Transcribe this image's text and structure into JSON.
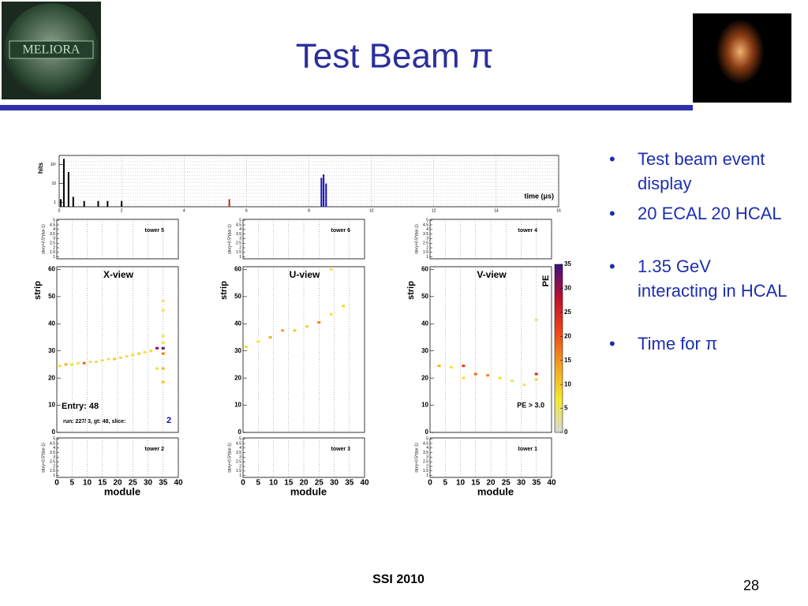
{
  "header": {
    "title": "Test Beam π",
    "logo_text": "MELIORA"
  },
  "bullets": [
    "Test beam event display",
    "20 ECAL 20 HCAL",
    "1.35 GeV interacting in HCAL",
    "Time for π"
  ],
  "footer": {
    "event": "SSI 2010",
    "page": "28"
  },
  "timing": {
    "ylabel": "hits",
    "xlabel": "time (μs)",
    "log": true,
    "xlim": [
      0,
      16
    ],
    "xticks": [
      0,
      2,
      4,
      6,
      8,
      10,
      12,
      14,
      16
    ],
    "ylim": [
      0.6,
      300
    ],
    "yticks": [
      1,
      10,
      {
        "value": 100,
        "label": "10²"
      }
    ],
    "hits": [
      [
        0.05,
        1.5,
        "#000000"
      ],
      [
        0.15,
        200,
        "#000000"
      ],
      [
        0.3,
        40,
        "#000000"
      ],
      [
        0.45,
        2,
        "#000000"
      ],
      [
        0.8,
        1.2,
        "#000000"
      ],
      [
        1.25,
        1.2,
        "#000000"
      ],
      [
        1.55,
        1.2,
        "#000000"
      ],
      [
        2.0,
        1.2,
        "#000000"
      ],
      [
        5.45,
        1.5,
        "#cc2222"
      ],
      [
        8.4,
        20,
        "#1010c0"
      ],
      [
        8.47,
        30,
        "#1010c0"
      ],
      [
        8.55,
        10,
        "#1010c0"
      ]
    ]
  },
  "towers": {
    "ylabel": "story+0.5*(bar-1)",
    "ylim": [
      0.8,
      5.1
    ],
    "yticks": [
      1,
      1.5,
      2,
      2.5,
      3,
      3.5,
      4,
      4.5,
      5
    ],
    "top": [
      "tower  5",
      "tower  6",
      "tower  4"
    ],
    "bottom": [
      "tower  2",
      "tower  3",
      "tower  1"
    ]
  },
  "views": {
    "ylabel": "strip",
    "xlabel": "module",
    "xlim": [
      0,
      40
    ],
    "xticks": [
      0,
      5,
      10,
      15,
      20,
      25,
      30,
      35,
      40
    ],
    "ylim": [
      0,
      61
    ],
    "yticks": [
      0,
      10,
      20,
      30,
      40,
      50,
      60
    ],
    "panels": [
      {
        "name": "X-view",
        "hits": [
          [
            1,
            24.5,
            6
          ],
          [
            3,
            25,
            12
          ],
          [
            5,
            25,
            8
          ],
          [
            7,
            25.5,
            6
          ],
          [
            9,
            25.5,
            18
          ],
          [
            11,
            26,
            5
          ],
          [
            13,
            26,
            4
          ],
          [
            15,
            26.5,
            6
          ],
          [
            17,
            27,
            4
          ],
          [
            19,
            27,
            10
          ],
          [
            21,
            27.5,
            8
          ],
          [
            23,
            28,
            5
          ],
          [
            25,
            28.5,
            8
          ],
          [
            27,
            29,
            9
          ],
          [
            29,
            29.5,
            6
          ],
          [
            31,
            30,
            8
          ],
          [
            33,
            31,
            30
          ],
          [
            35,
            31,
            33
          ],
          [
            35,
            29,
            16
          ],
          [
            35,
            33,
            6
          ],
          [
            35,
            35.5,
            5
          ],
          [
            35,
            45,
            5
          ],
          [
            35,
            48.5,
            4
          ],
          [
            35,
            23.5,
            12
          ],
          [
            33,
            23.5,
            5
          ],
          [
            35,
            18.5,
            10
          ]
        ]
      },
      {
        "name": "U-view",
        "hits": [
          [
            1,
            31.5,
            8
          ],
          [
            5,
            33.5,
            6
          ],
          [
            9,
            35,
            12
          ],
          [
            13,
            37.5,
            14
          ],
          [
            17,
            37.5,
            10
          ],
          [
            21,
            39,
            9
          ],
          [
            25,
            40.5,
            16
          ],
          [
            29,
            43.5,
            6
          ],
          [
            33,
            46.5,
            8
          ],
          [
            29,
            60,
            5
          ]
        ]
      },
      {
        "name": "V-view",
        "hits": [
          [
            3,
            24.5,
            12
          ],
          [
            7,
            24,
            6
          ],
          [
            11,
            24.5,
            22
          ],
          [
            11,
            20,
            8
          ],
          [
            15,
            21.5,
            18
          ],
          [
            19,
            21,
            16
          ],
          [
            23,
            20,
            8
          ],
          [
            27,
            19,
            5
          ],
          [
            31,
            17.5,
            5
          ],
          [
            35,
            21.5,
            24
          ],
          [
            35,
            19.5,
            8
          ],
          [
            35,
            41.5,
            4
          ]
        ]
      }
    ],
    "entry": "Entry: 48",
    "run": "run:  227/ 3, gt:   48, slice:",
    "slice": "2",
    "cut": "PE > 3.0"
  },
  "colorbar": {
    "label": "PE",
    "lim": [
      0,
      35
    ],
    "ticks": [
      0,
      5,
      10,
      15,
      20,
      25,
      30,
      35
    ],
    "palette": [
      "#d8d8d8",
      "#f2e830",
      "#f4a020",
      "#ee4418",
      "#c01030",
      "#3c1080"
    ]
  }
}
